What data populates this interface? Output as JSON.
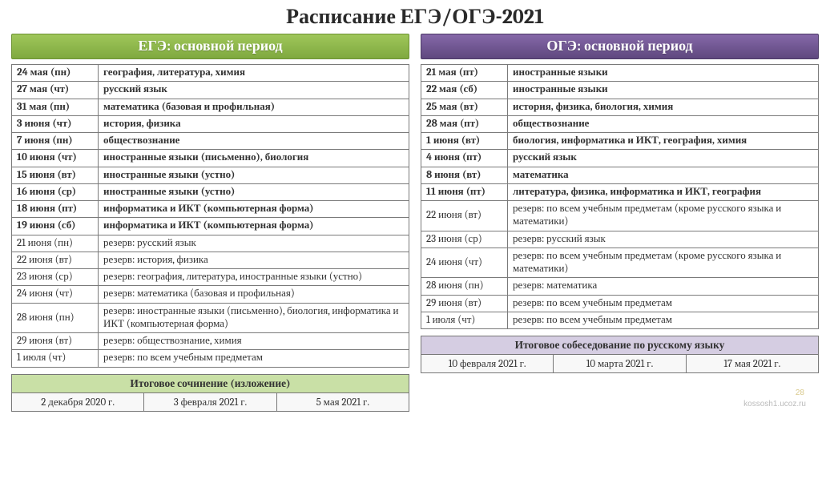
{
  "title": "Расписание ЕГЭ/ОГЭ-2021",
  "left": {
    "header": "ЕГЭ: основной период",
    "rows": [
      {
        "date": "24 мая (пн)",
        "subj": "география, литература, химия",
        "t": "main"
      },
      {
        "date": "27 мая (чт)",
        "subj": "русский язык",
        "t": "main"
      },
      {
        "date": "31 мая (пн)",
        "subj": "математика  (базовая и профильная)",
        "t": "main"
      },
      {
        "date": "3 июня (чт)",
        "subj": "история, физика",
        "t": "main"
      },
      {
        "date": "7 июня (пн)",
        "subj": "обществознание",
        "t": "main"
      },
      {
        "date": "10 июня (чт)",
        "subj": "иностранные языки (письменно), биология",
        "t": "main"
      },
      {
        "date": "15 июня (вт)",
        "subj": "иностранные языки (устно)",
        "t": "main"
      },
      {
        "date": "16 июня (ср)",
        "subj": "иностранные языки (устно)",
        "t": "main"
      },
      {
        "date": "18 июня (пт)",
        "subj": "информатика и ИКТ (компьютерная форма)",
        "t": "main"
      },
      {
        "date": "19 июня (сб)",
        "subj": "информатика и ИКТ (компьютерная форма)",
        "t": "main"
      },
      {
        "date": "21 июня (пн)",
        "subj": "резерв:  русский язык",
        "t": "res"
      },
      {
        "date": "22 июня (вт)",
        "subj": "резерв: история, физика",
        "t": "res"
      },
      {
        "date": "23 июня (ср)",
        "subj": "резерв: география, литература, иностранные языки (устно)",
        "t": "res"
      },
      {
        "date": "24 июня (чт)",
        "subj": "резерв: математика (базовая и профильная)",
        "t": "res"
      },
      {
        "date": "28 июня (пн)",
        "subj": "резерв: иностранные языки (письменно), биология, информатика и ИКТ (компьютерная форма)",
        "t": "res"
      },
      {
        "date": "29 июня (вт)",
        "subj": "резерв: обществознание, химия",
        "t": "res"
      },
      {
        "date": "1 июля (чт)",
        "subj": "резерв: по всем учебным предметам",
        "t": "res"
      }
    ],
    "footer": {
      "title": "Итоговое сочинение (изложение)",
      "cells": [
        "2 декабря 2020 г.",
        "3 февраля 2021 г.",
        "5 мая 2021 г."
      ]
    }
  },
  "right": {
    "header": "ОГЭ: основной период",
    "rows": [
      {
        "date": "21 мая (пт)",
        "subj": "иностранные языки",
        "t": "main"
      },
      {
        "date": "22 мая (сб)",
        "subj": "иностранные языки",
        "t": "main"
      },
      {
        "date": "25 мая (вт)",
        "subj": "история, физика, биология, химия",
        "t": "main"
      },
      {
        "date": "28 мая (пт)",
        "subj": "обществознание",
        "t": "main"
      },
      {
        "date": "1 июня (вт)",
        "subj": "биология, информатика и ИКТ, география, химия",
        "t": "main"
      },
      {
        "date": "4 июня (пт)",
        "subj": "русский язык",
        "t": "main"
      },
      {
        "date": "8 июня (вт)",
        "subj": "математика",
        "t": "main"
      },
      {
        "date": "11 июня (пт)",
        "subj": "литература, физика, информатика и ИКТ, география",
        "t": "main"
      },
      {
        "date": "22 июня (вт)",
        "subj": "резерв: по всем учебным предметам (кроме русского языка и математики)",
        "t": "res"
      },
      {
        "date": "23 июня (ср)",
        "subj": "резерв: русский язык",
        "t": "res"
      },
      {
        "date": "24 июня (чт)",
        "subj": "резерв: по всем учебным предметам (кроме русского языка и математики)",
        "t": "res"
      },
      {
        "date": "28 июня (пн)",
        "subj": "резерв: математика",
        "t": "res"
      },
      {
        "date": "29 июня (вт)",
        "subj": "резерв: по всем учебным предметам",
        "t": "res"
      },
      {
        "date": "1 июля (чт)",
        "subj": "резерв: по всем учебным предметам",
        "t": "res"
      }
    ],
    "footer": {
      "title": "Итоговое собеседование по русскому языку",
      "cells": [
        "10 февраля 2021 г.",
        "10 марта 2021 г.",
        "17 мая 2021 г."
      ]
    }
  },
  "pagenum": "28",
  "watermark": "kossosh1.ucoz.ru"
}
